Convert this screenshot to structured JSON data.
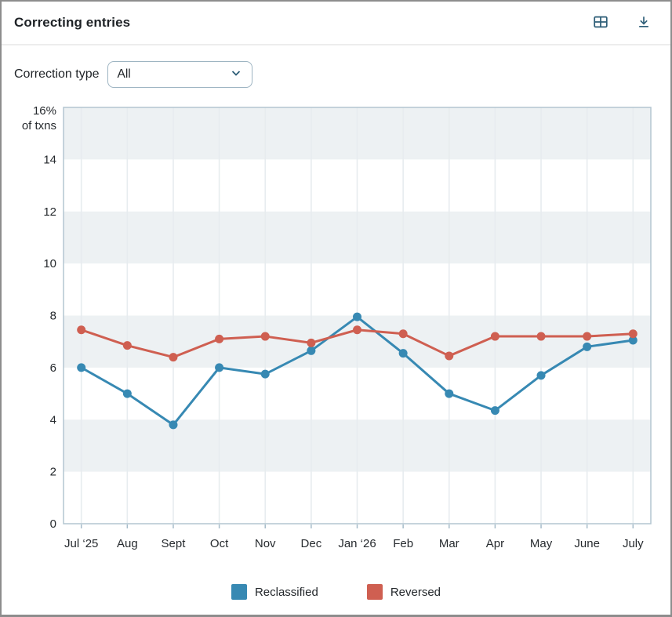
{
  "header": {
    "title": "Correcting entries",
    "icons": {
      "table_view": "table-view",
      "download": "download"
    }
  },
  "filter": {
    "label": "Correction type",
    "value": "All"
  },
  "chart_data": {
    "type": "line",
    "title": "Correcting entries",
    "x_categories": [
      "Jul ‘25",
      "Aug",
      "Sept",
      "Oct",
      "Nov",
      "Dec",
      "Jan ‘26",
      "Feb",
      "Mar",
      "Apr",
      "May",
      "June",
      "July"
    ],
    "series": [
      {
        "name": "Reclassified",
        "color": "#3789b3",
        "values": [
          6.0,
          5.0,
          3.8,
          6.0,
          5.75,
          6.65,
          7.95,
          6.55,
          5.0,
          4.35,
          5.7,
          6.8,
          7.05
        ]
      },
      {
        "name": "Reversed",
        "color": "#cf5f51",
        "values": [
          7.45,
          6.85,
          6.4,
          7.1,
          7.2,
          6.95,
          7.45,
          7.3,
          6.45,
          7.2,
          7.2,
          7.2,
          7.3
        ]
      }
    ],
    "y_axis": {
      "top_label_line1": "16%",
      "top_label_line2": "of txns",
      "ticks": [
        14,
        12,
        10,
        8,
        6,
        4,
        2,
        0
      ],
      "min": 0,
      "max": 16
    },
    "ylim": [
      0,
      16
    ],
    "grid": true,
    "bands": [
      [
        14,
        16
      ],
      [
        10,
        12
      ],
      [
        6,
        8
      ],
      [
        2,
        4
      ]
    ],
    "band_color": "#edf1f3",
    "gridline_color": "#e7ecef",
    "border_color": "#b3c6d1",
    "axis_color": "#a6bcca",
    "legend_position": "bottom"
  },
  "colors": {
    "icon_teal": "#2d5d77",
    "text": "#23272b"
  }
}
